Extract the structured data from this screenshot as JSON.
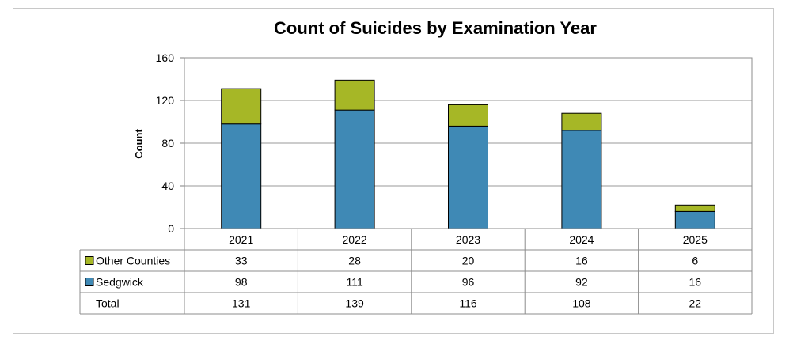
{
  "chart_data": {
    "type": "bar",
    "stacked": true,
    "title": "Count of Suicides by Examination Year",
    "xlabel": "",
    "ylabel": "Count",
    "ylim": [
      0,
      160
    ],
    "yticks": [
      0,
      40,
      80,
      120,
      160
    ],
    "grid": true,
    "legend": "data-table",
    "categories": [
      "2021",
      "2022",
      "2023",
      "2024",
      "2025"
    ],
    "series": [
      {
        "name": "Sedgwick",
        "color": "#3f89b5",
        "values": [
          98,
          111,
          96,
          92,
          16
        ]
      },
      {
        "name": "Other Counties",
        "color": "#a6b726",
        "values": [
          33,
          28,
          20,
          16,
          6
        ]
      }
    ],
    "table": {
      "rows": [
        {
          "label": "Other Counties",
          "series": 1
        },
        {
          "label": "Sedgwick",
          "series": 0
        },
        {
          "label": "Total",
          "values": [
            131,
            139,
            116,
            108,
            22
          ]
        }
      ]
    }
  }
}
